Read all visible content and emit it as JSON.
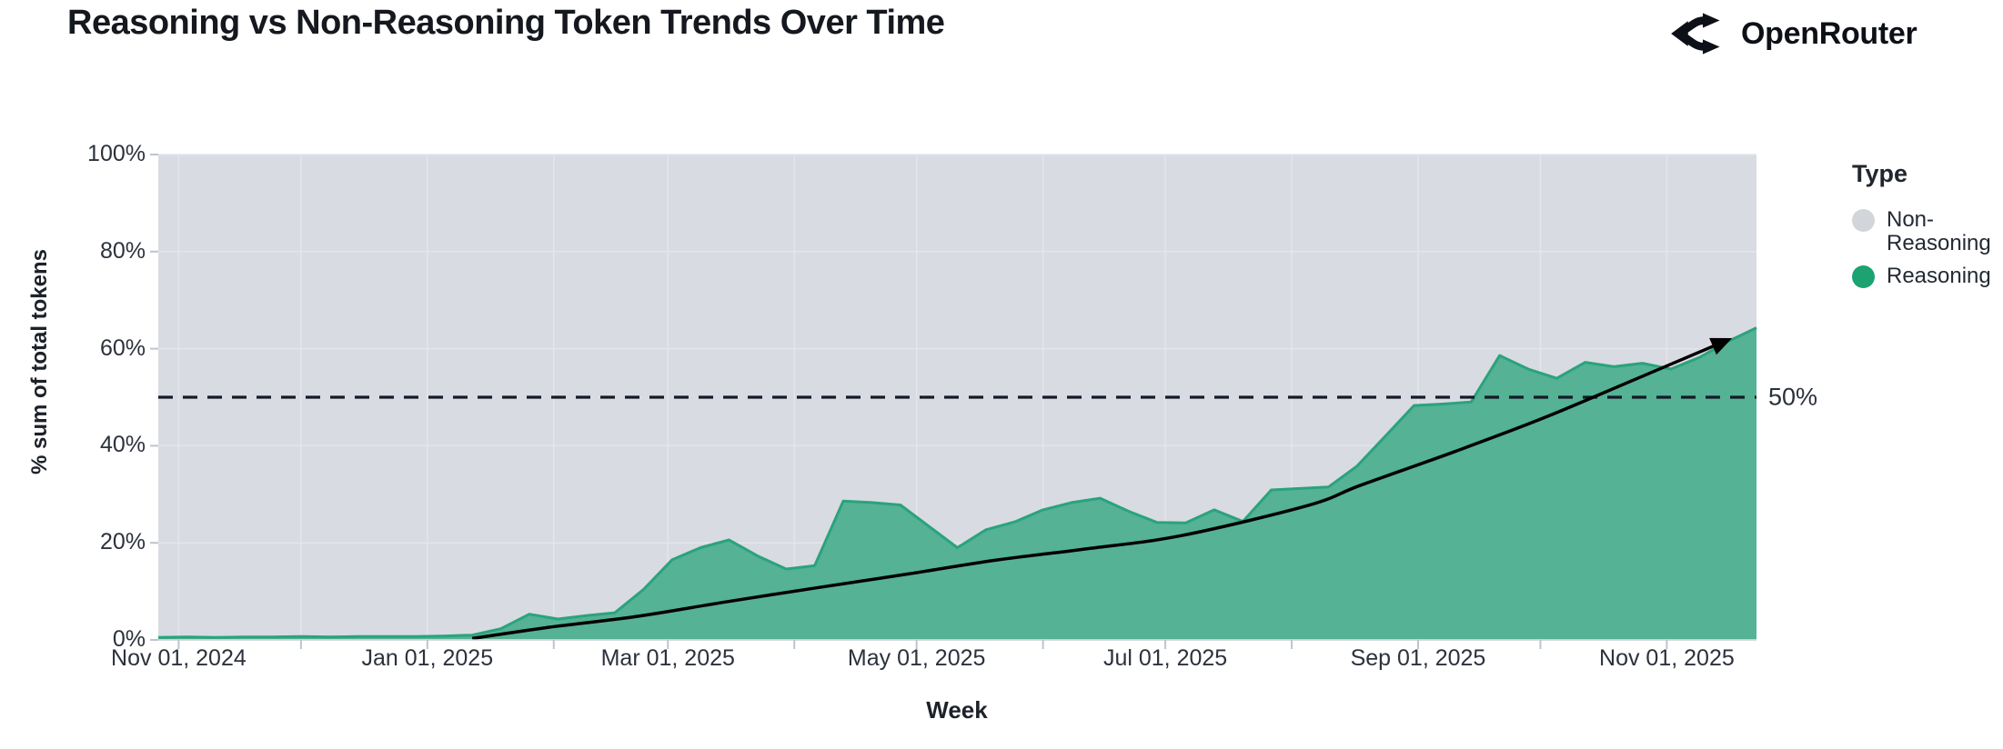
{
  "header": {
    "title": "Reasoning vs Non-Reasoning Token Trends Over Time",
    "brand": "OpenRouter"
  },
  "chart_data": {
    "type": "area",
    "subtype": "percent-stacked-weekly",
    "title": "Reasoning vs Non-Reasoning Token Trends Over Time",
    "xlabel": "Week",
    "ylabel": "% sum of total tokens",
    "ylim": [
      0,
      100
    ],
    "x_domain": [
      "2024-10-27",
      "2025-11-23"
    ],
    "grid": "on",
    "legend_position": "right",
    "legend": {
      "title": "Type",
      "items": [
        {
          "label": "Non-Reasoning",
          "color": "#d2d5da"
        },
        {
          "label": "Reasoning",
          "color": "#1da271"
        }
      ]
    },
    "y_ticks": [
      {
        "label": "0%",
        "value": 0
      },
      {
        "label": "20%",
        "value": 20
      },
      {
        "label": "40%",
        "value": 40
      },
      {
        "label": "60%",
        "value": 60
      },
      {
        "label": "80%",
        "value": 80
      },
      {
        "label": "100%",
        "value": 100
      }
    ],
    "x_ticks": [
      {
        "label": "Nov 01, 2024",
        "date": "2024-11-01"
      },
      {
        "label": "Jan 01, 2025",
        "date": "2025-01-01"
      },
      {
        "label": "Mar 01, 2025",
        "date": "2025-03-01"
      },
      {
        "label": "May 01, 2025",
        "date": "2025-05-01"
      },
      {
        "label": "Jul 01, 2025",
        "date": "2025-07-01"
      },
      {
        "label": "Sep 01, 2025",
        "date": "2025-09-01"
      },
      {
        "label": "Nov 01, 2025",
        "date": "2025-11-01"
      }
    ],
    "minor_grid_dates": [
      "2024-11-01",
      "2024-12-01",
      "2025-01-01",
      "2025-02-01",
      "2025-03-01",
      "2025-04-01",
      "2025-05-01",
      "2025-06-01",
      "2025-07-01",
      "2025-08-01",
      "2025-09-01",
      "2025-10-01",
      "2025-11-01"
    ],
    "reference_line": {
      "value": 50,
      "label": "50%",
      "style": "dashed",
      "color": "#141a26"
    },
    "series": [
      {
        "name": "Reasoning",
        "fill_color": "#55b294",
        "stroke_color": "#2aa37c",
        "dates": [
          "2024-10-27",
          "2024-11-03",
          "2024-11-10",
          "2024-11-17",
          "2024-11-24",
          "2024-12-01",
          "2024-12-08",
          "2024-12-15",
          "2024-12-22",
          "2024-12-29",
          "2025-01-05",
          "2025-01-12",
          "2025-01-19",
          "2025-01-26",
          "2025-02-02",
          "2025-02-09",
          "2025-02-16",
          "2025-02-23",
          "2025-03-02",
          "2025-03-09",
          "2025-03-16",
          "2025-03-23",
          "2025-03-30",
          "2025-04-06",
          "2025-04-13",
          "2025-04-20",
          "2025-04-27",
          "2025-05-04",
          "2025-05-11",
          "2025-05-18",
          "2025-05-25",
          "2025-06-01",
          "2025-06-08",
          "2025-06-15",
          "2025-06-22",
          "2025-06-29",
          "2025-07-06",
          "2025-07-13",
          "2025-07-20",
          "2025-07-27",
          "2025-08-03",
          "2025-08-10",
          "2025-08-17",
          "2025-08-24",
          "2025-08-31",
          "2025-09-07",
          "2025-09-14",
          "2025-09-21",
          "2025-09-28",
          "2025-10-05",
          "2025-10-12",
          "2025-10-19",
          "2025-10-26",
          "2025-11-02",
          "2025-11-09",
          "2025-11-16",
          "2025-11-23"
        ],
        "values": [
          0.5,
          0.6,
          0.5,
          0.6,
          0.6,
          0.7,
          0.6,
          0.7,
          0.7,
          0.7,
          0.8,
          1.0,
          2.3,
          5.3,
          4.3,
          5.0,
          5.6,
          10.4,
          16.5,
          19.0,
          20.6,
          17.3,
          14.6,
          15.3,
          28.6,
          28.3,
          27.8,
          23.4,
          19.0,
          22.7,
          24.3,
          26.8,
          28.3,
          29.2,
          26.5,
          24.2,
          24.1,
          26.8,
          24.4,
          30.9,
          31.2,
          31.5,
          35.8,
          42.0,
          48.3,
          48.6,
          49.0,
          58.6,
          55.8,
          53.9,
          57.2,
          56.3,
          57.0,
          55.8,
          58.2,
          61.5,
          64.3
        ]
      },
      {
        "name": "Non-Reasoning",
        "fill_color": "#d8dbe2",
        "note": "remainder to 100%"
      }
    ],
    "trend_arrow": {
      "color": "#000000",
      "dates": [
        "2025-01-12",
        "2025-01-30",
        "2025-02-21",
        "2025-03-15",
        "2025-04-07",
        "2025-04-29",
        "2025-05-21",
        "2025-06-12",
        "2025-07-05",
        "2025-08-05",
        "2025-08-18",
        "2025-09-10",
        "2025-10-02",
        "2025-10-24",
        "2025-11-16"
      ],
      "values": [
        0.3,
        2.5,
        4.8,
        7.8,
        10.8,
        13.6,
        16.5,
        18.8,
        21.5,
        27.7,
        31.9,
        38.8,
        45.8,
        53.6,
        61.8
      ]
    },
    "colors": {
      "plot_background": "#d8dbe2",
      "gridline": "#e3e6eb",
      "axis_line": "#c9cdd4",
      "tick_mark": "#bfc4cc",
      "reasoning_fill": "#55b294",
      "reasoning_stroke": "#2aa37c",
      "non_reasoning": "#d2d5da",
      "text_dark": "#2c323c"
    }
  }
}
